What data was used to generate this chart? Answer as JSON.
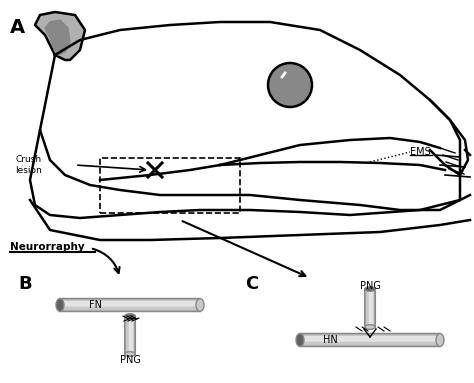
{
  "bg_color": "#ffffff",
  "label_A": "A",
  "label_B": "B",
  "label_C": "C",
  "crush_lesion_text": "Crush\nlesion",
  "neurorraphy_text": "Neurorraphy",
  "ems_text": "EMS",
  "fn_text": "FN",
  "png_text_B": "PNG",
  "png_text_C": "PNG",
  "hn_text": "HN",
  "tube_color_light": "#c8c8c8",
  "tube_color_dark": "#888888",
  "tube_color_end": "#606060",
  "line_color": "#000000",
  "text_color": "#000000"
}
